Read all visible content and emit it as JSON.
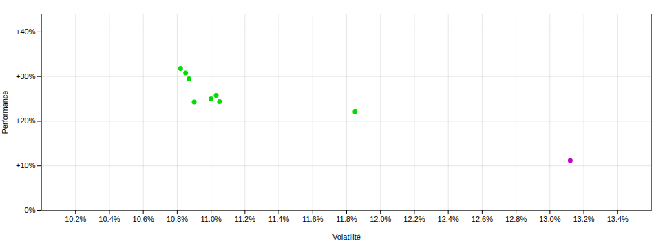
{
  "chart_data": {
    "type": "scatter",
    "xlabel": "Volatilité",
    "ylabel": "Performance",
    "xlim": [
      0.1,
      0.136
    ],
    "ylim": [
      0.0,
      0.44
    ],
    "xticks": [
      {
        "value": 0.102,
        "label": "10.2%"
      },
      {
        "value": 0.104,
        "label": "10.4%"
      },
      {
        "value": 0.106,
        "label": "10.6%"
      },
      {
        "value": 0.108,
        "label": "10.8%"
      },
      {
        "value": 0.11,
        "label": "11.0%"
      },
      {
        "value": 0.112,
        "label": "11.2%"
      },
      {
        "value": 0.114,
        "label": "11.4%"
      },
      {
        "value": 0.116,
        "label": "11.6%"
      },
      {
        "value": 0.118,
        "label": "11.8%"
      },
      {
        "value": 0.12,
        "label": "12.0%"
      },
      {
        "value": 0.122,
        "label": "12.2%"
      },
      {
        "value": 0.124,
        "label": "12.4%"
      },
      {
        "value": 0.126,
        "label": "12.6%"
      },
      {
        "value": 0.128,
        "label": "12.8%"
      },
      {
        "value": 0.13,
        "label": "13.0%"
      },
      {
        "value": 0.132,
        "label": "13.2%"
      },
      {
        "value": 0.134,
        "label": "13.4%"
      }
    ],
    "yticks": [
      {
        "value": 0.0,
        "label": "0%"
      },
      {
        "value": 0.1,
        "label": "+10%"
      },
      {
        "value": 0.2,
        "label": "+20%"
      },
      {
        "value": 0.3,
        "label": "+30%"
      },
      {
        "value": 0.4,
        "label": "+40%"
      }
    ],
    "grid": true,
    "series": [
      {
        "color": "#00dd00",
        "x": [
          0.1082,
          0.1085,
          0.1087,
          0.109,
          0.11,
          0.1103,
          0.1105,
          0.1185
        ],
        "values": [
          0.318,
          0.308,
          0.295,
          0.243,
          0.25,
          0.258,
          0.244,
          0.221
        ]
      },
      {
        "color": "#cc00cc",
        "x": [
          0.1312
        ],
        "values": [
          0.112
        ]
      }
    ]
  }
}
